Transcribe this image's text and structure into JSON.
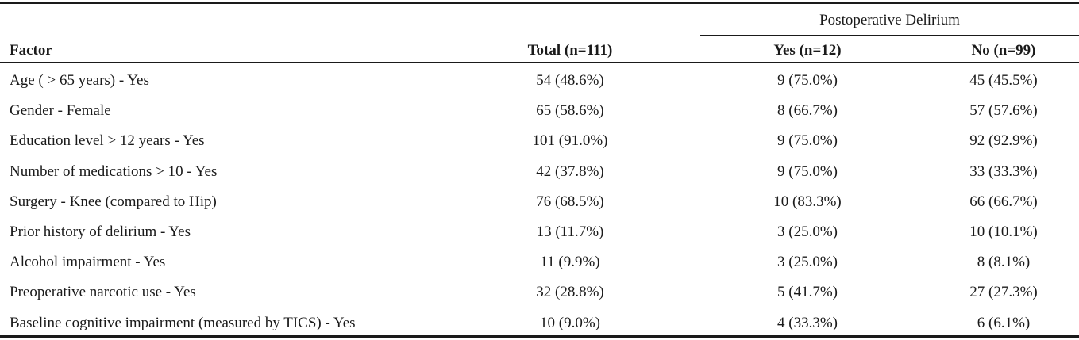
{
  "header": {
    "group": "Postoperative Delirium",
    "columns": [
      "Factor",
      "Total (n=111)",
      "Yes (n=12)",
      "No (n=99)"
    ]
  },
  "table": {
    "rows": [
      [
        "Age  ( > 65 years) - Yes",
        "54 (48.6%)",
        "9 (75.0%)",
        "45 (45.5%)"
      ],
      [
        "Gender - Female",
        "65 (58.6%)",
        "8 (66.7%)",
        "57 (57.6%)"
      ],
      [
        "Education level > 12 years - Yes",
        "101 (91.0%)",
        "9 (75.0%)",
        "92 (92.9%)"
      ],
      [
        "Number of medications > 10 - Yes",
        "42 (37.8%)",
        "9 (75.0%)",
        "33 (33.3%)"
      ],
      [
        "Surgery - Knee (compared to Hip)",
        "76 (68.5%)",
        "10 (83.3%)",
        "66 (66.7%)"
      ],
      [
        "Prior history of delirium - Yes",
        "13 (11.7%)",
        "3 (25.0%)",
        "10 (10.1%)"
      ],
      [
        "Alcohol impairment - Yes",
        "11 (9.9%)",
        "3 (25.0%)",
        "8 (8.1%)"
      ],
      [
        "Preoperative narcotic use - Yes",
        "32 (28.8%)",
        "5 (41.7%)",
        "27 (27.3%)"
      ],
      [
        "Baseline cognitive impairment (measured by TICS) - Yes",
        "10 (9.0%)",
        "4 (33.3%)",
        "6 (6.1%)"
      ]
    ]
  }
}
